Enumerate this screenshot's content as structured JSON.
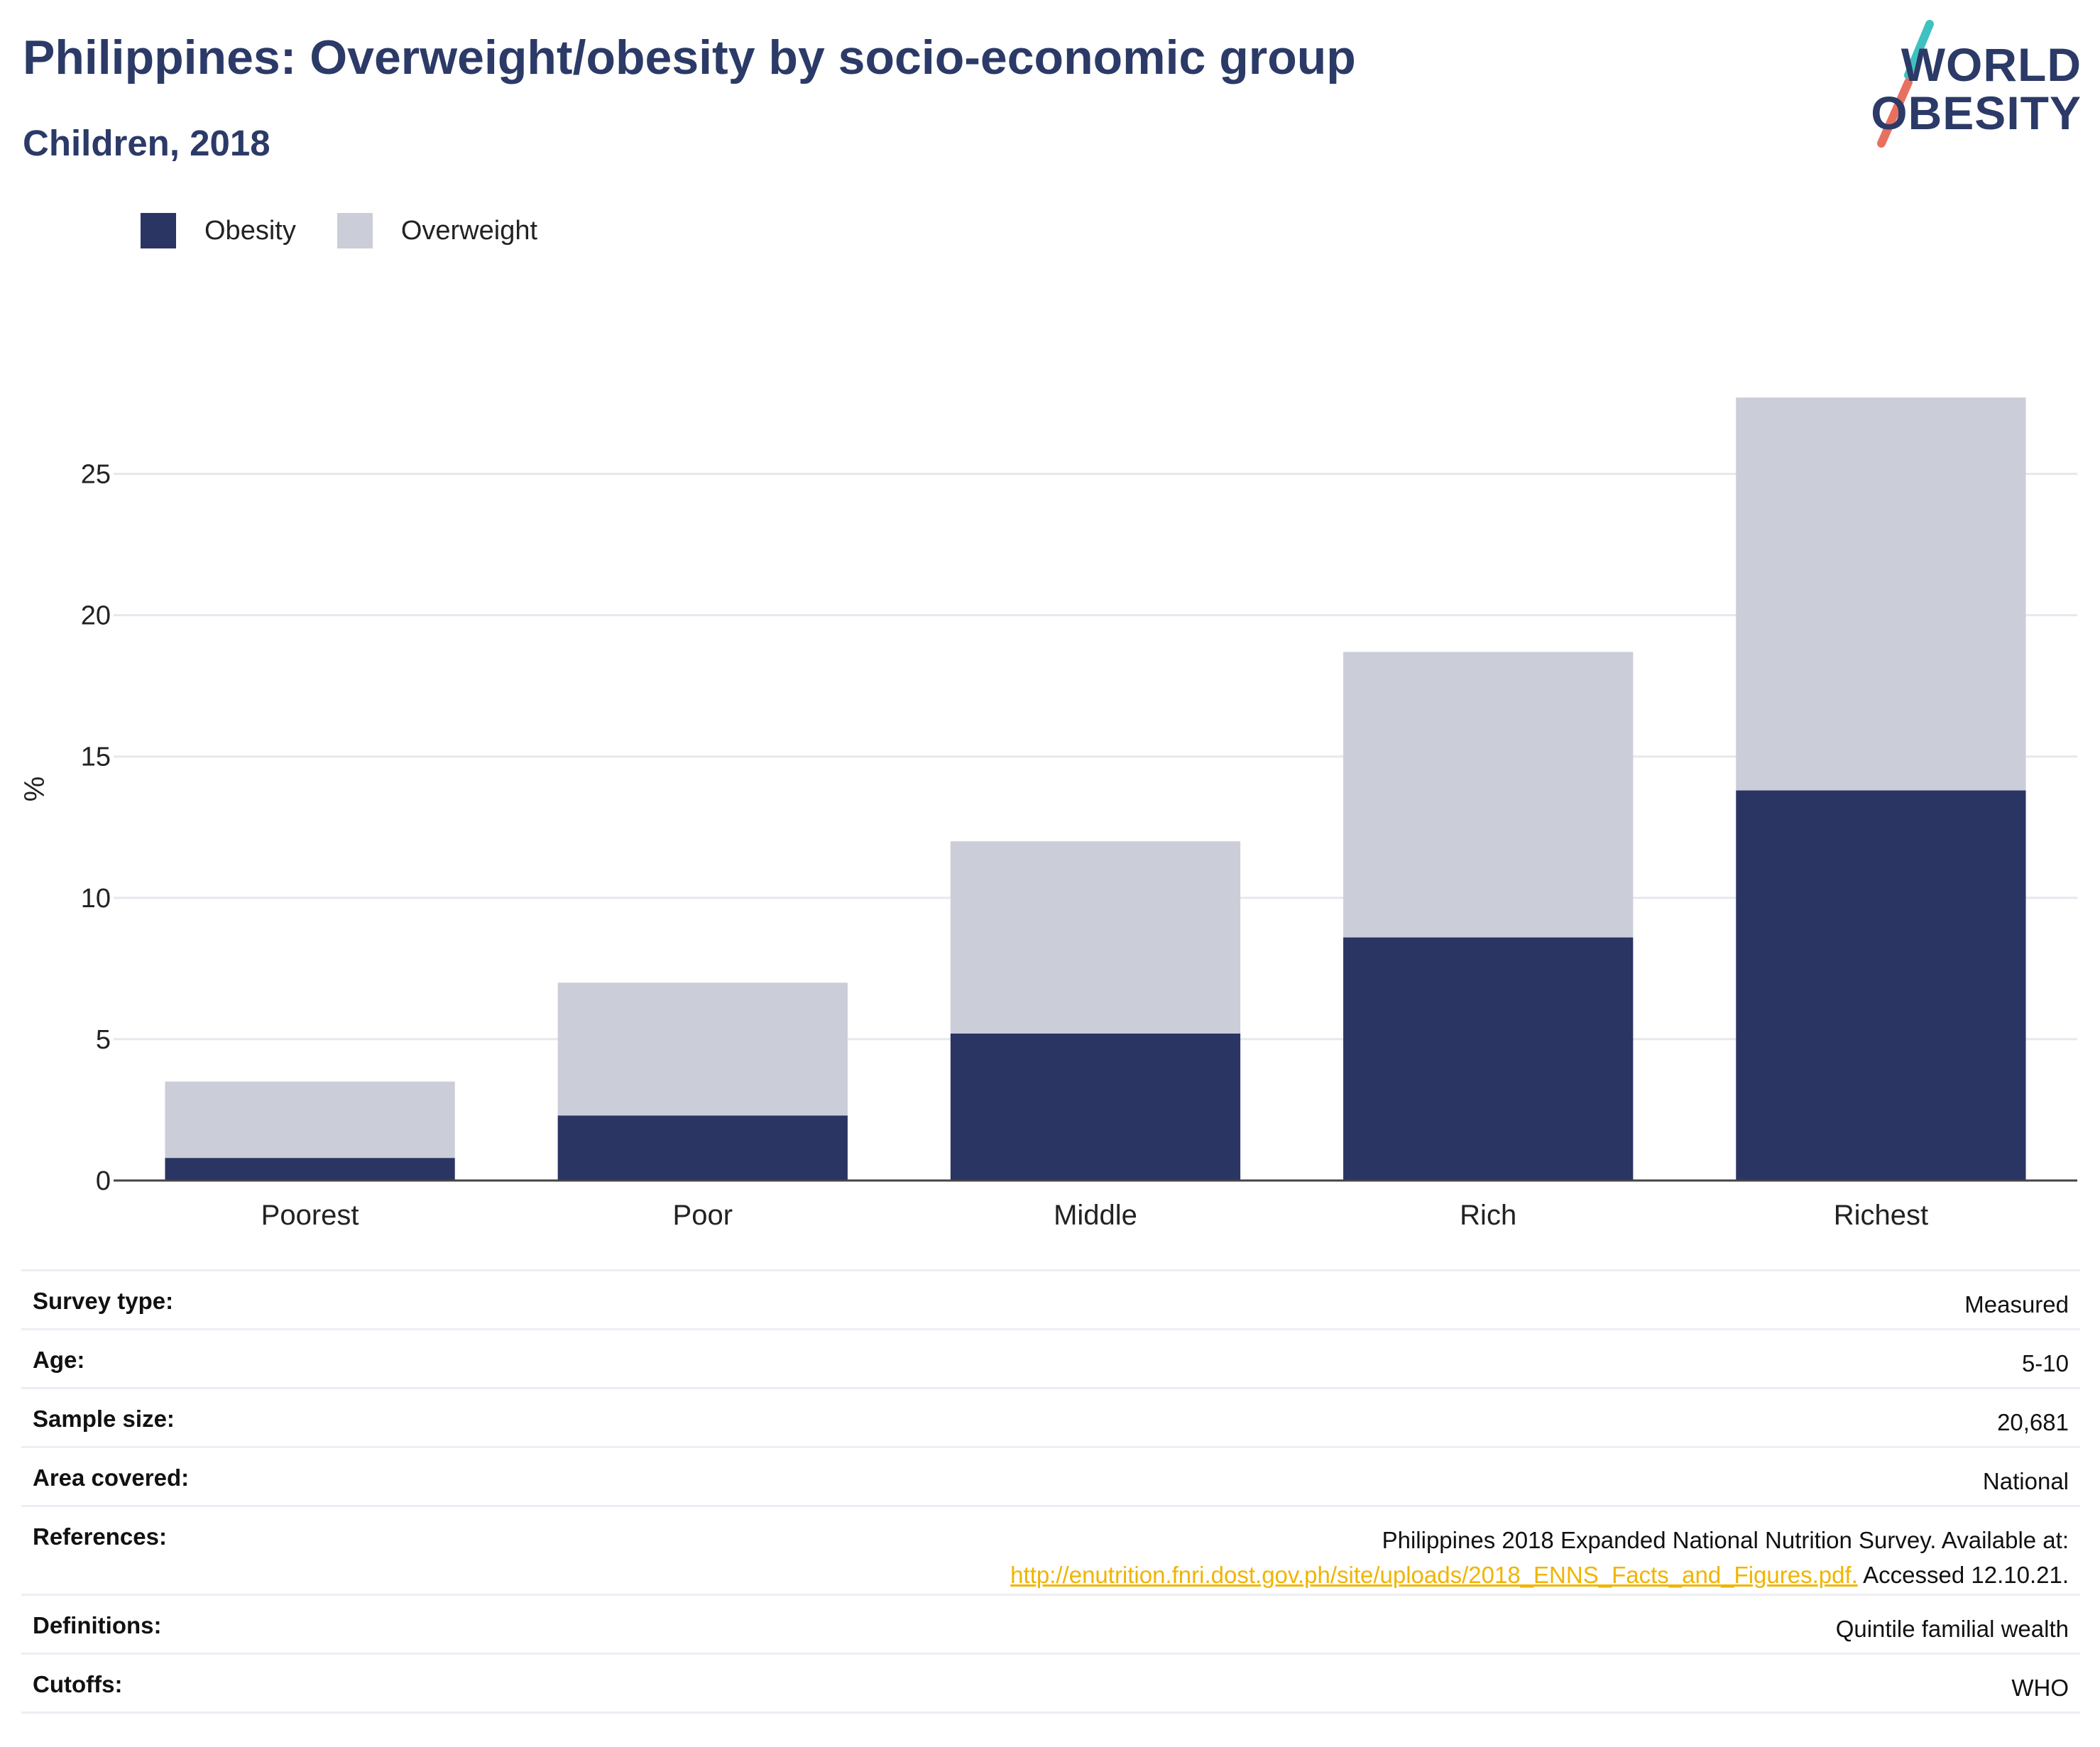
{
  "header": {
    "title": "Philippines: Overweight/obesity by socio-economic group",
    "subtitle": "Children, 2018"
  },
  "logo": {
    "line1": "WORLD",
    "line2": "OBESITY",
    "slash_colors": [
      "#3fc1c0",
      "#e8705f"
    ]
  },
  "legend": [
    {
      "label": "Obesity",
      "color": "#2a3563"
    },
    {
      "label": "Overweight",
      "color": "#cbcdd8"
    }
  ],
  "chart_data": {
    "type": "bar",
    "stacked": true,
    "categories": [
      "Poorest",
      "Poor",
      "Middle",
      "Rich",
      "Richest"
    ],
    "series": [
      {
        "name": "Obesity",
        "color": "#2a3563",
        "values": [
          0.8,
          2.3,
          5.2,
          8.6,
          13.8
        ]
      },
      {
        "name": "Overweight",
        "color": "#cbcdd8",
        "values": [
          2.7,
          4.7,
          6.8,
          10.1,
          13.9
        ]
      }
    ],
    "ylabel": "%",
    "ylim": [
      0,
      27.7
    ],
    "yticks": [
      0,
      5,
      10,
      15,
      20,
      25
    ],
    "grid": true,
    "legend_position": "top-left"
  },
  "metadata": [
    {
      "label": "Survey type:",
      "value": "Measured"
    },
    {
      "label": "Age:",
      "value": "5-10"
    },
    {
      "label": "Sample size:",
      "value": "20,681"
    },
    {
      "label": "Area covered:",
      "value": "National"
    },
    {
      "label": "References:",
      "value_line1": "Philippines 2018 Expanded National Nutrition Survey. Available at:",
      "link_text": "http://enutrition.fnri.dost.gov.ph/site/uploads/2018_ENNS_Facts_and_Figures.pdf.",
      "value_suffix": " Accessed 12.10.21."
    },
    {
      "label": "Definitions:",
      "value": "Quintile familial wealth"
    },
    {
      "label": "Cutoffs:",
      "value": "WHO"
    }
  ]
}
